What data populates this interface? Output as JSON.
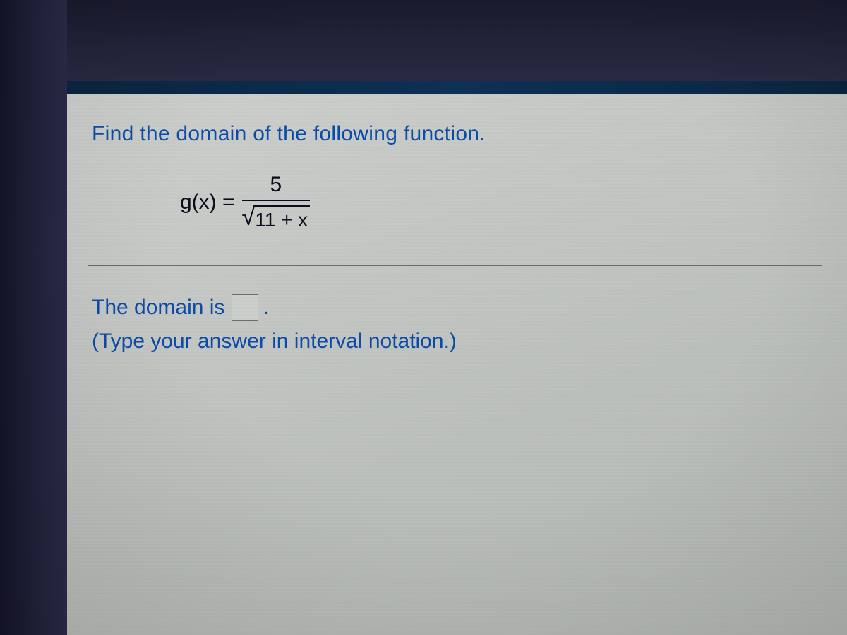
{
  "question": {
    "prompt": "Find the domain of the following function.",
    "function_lhs": "g(x) =",
    "numerator": "5",
    "radicand": "11 + x"
  },
  "answer": {
    "label_prefix": "The domain is",
    "label_suffix": ".",
    "hint": "(Type your answer in interval notation.)",
    "input_value": ""
  },
  "styling": {
    "text_color": "#0b4ba8",
    "math_color": "#0a0a1a",
    "panel_bg_start": "#cdd0cd",
    "panel_bg_end": "#b5b9b5",
    "frame_dark": "#1a1a2e",
    "divider_color": "#6a6d6a",
    "font_size_main": 30,
    "font_family": "Arial"
  }
}
